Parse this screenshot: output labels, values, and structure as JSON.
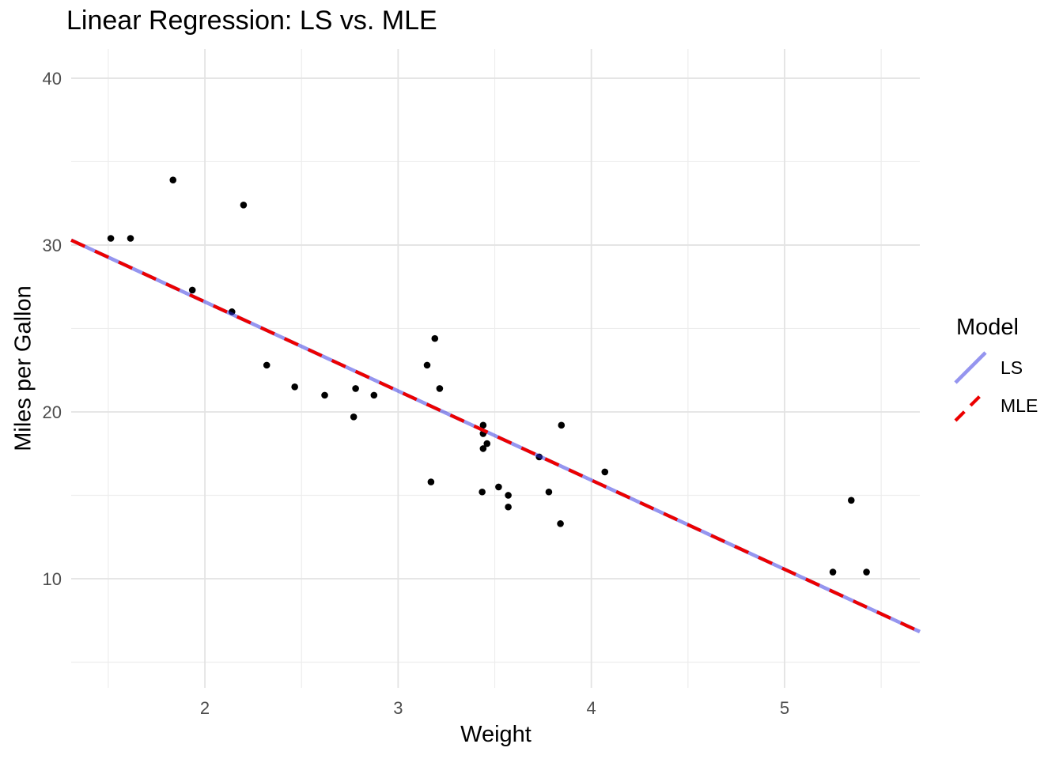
{
  "chart_data": {
    "type": "scatter",
    "title": "Linear Regression: LS vs. MLE",
    "xlabel": "Weight",
    "ylabel": "Miles per Gallon",
    "xlim": [
      1.308,
      5.7
    ],
    "ylim": [
      3.46,
      41.75
    ],
    "x_ticks": [
      2,
      3,
      4,
      5
    ],
    "x_minor_ticks": [
      1.5,
      2.5,
      3.5,
      4.5,
      5.5
    ],
    "y_ticks": [
      10,
      20,
      30,
      40
    ],
    "y_minor_ticks": [
      5,
      15,
      25,
      35
    ],
    "grid": true,
    "legend_position": "right",
    "points": {
      "x": [
        2.62,
        2.875,
        2.32,
        3.215,
        3.44,
        3.46,
        3.57,
        3.19,
        3.15,
        3.44,
        3.44,
        4.07,
        3.73,
        3.78,
        5.25,
        5.424,
        5.345,
        2.2,
        1.615,
        1.835,
        2.465,
        3.52,
        3.435,
        3.84,
        3.845,
        1.935,
        2.14,
        1.513,
        3.17,
        2.77,
        3.57,
        2.78
      ],
      "y": [
        21.0,
        21.0,
        22.8,
        21.4,
        18.7,
        18.1,
        14.3,
        24.4,
        22.8,
        19.2,
        17.8,
        16.4,
        17.3,
        15.2,
        10.4,
        10.4,
        14.7,
        32.4,
        30.4,
        33.9,
        21.5,
        15.5,
        15.2,
        13.3,
        19.2,
        27.3,
        26.0,
        30.4,
        15.8,
        19.7,
        15.0,
        21.4
      ]
    },
    "lines": [
      {
        "name": "LS",
        "slope": -5.344,
        "intercept": 37.285,
        "color": "#2B2BE0",
        "opacity": 0.5,
        "width": 4.6,
        "dash": ""
      },
      {
        "name": "MLE",
        "slope": -5.344,
        "intercept": 37.285,
        "color": "#EC0000",
        "opacity": 1,
        "width": 4.2,
        "dash": "19 14"
      }
    ],
    "legend": {
      "title": "Model",
      "entries": [
        {
          "label": "LS",
          "color": "#2B2BE0",
          "opacity": 0.5,
          "width": 4.6,
          "dash": ""
        },
        {
          "label": "MLE",
          "color": "#EC0000",
          "opacity": 1,
          "width": 4.2,
          "dash": "16 11"
        }
      ]
    }
  },
  "colors": {
    "background": "#FFFFFF",
    "grid_major": "#E3E3E3",
    "grid_minor": "#EDEDED",
    "point": "#000000",
    "tick_label": "#4D4D4D",
    "text": "#000000"
  }
}
